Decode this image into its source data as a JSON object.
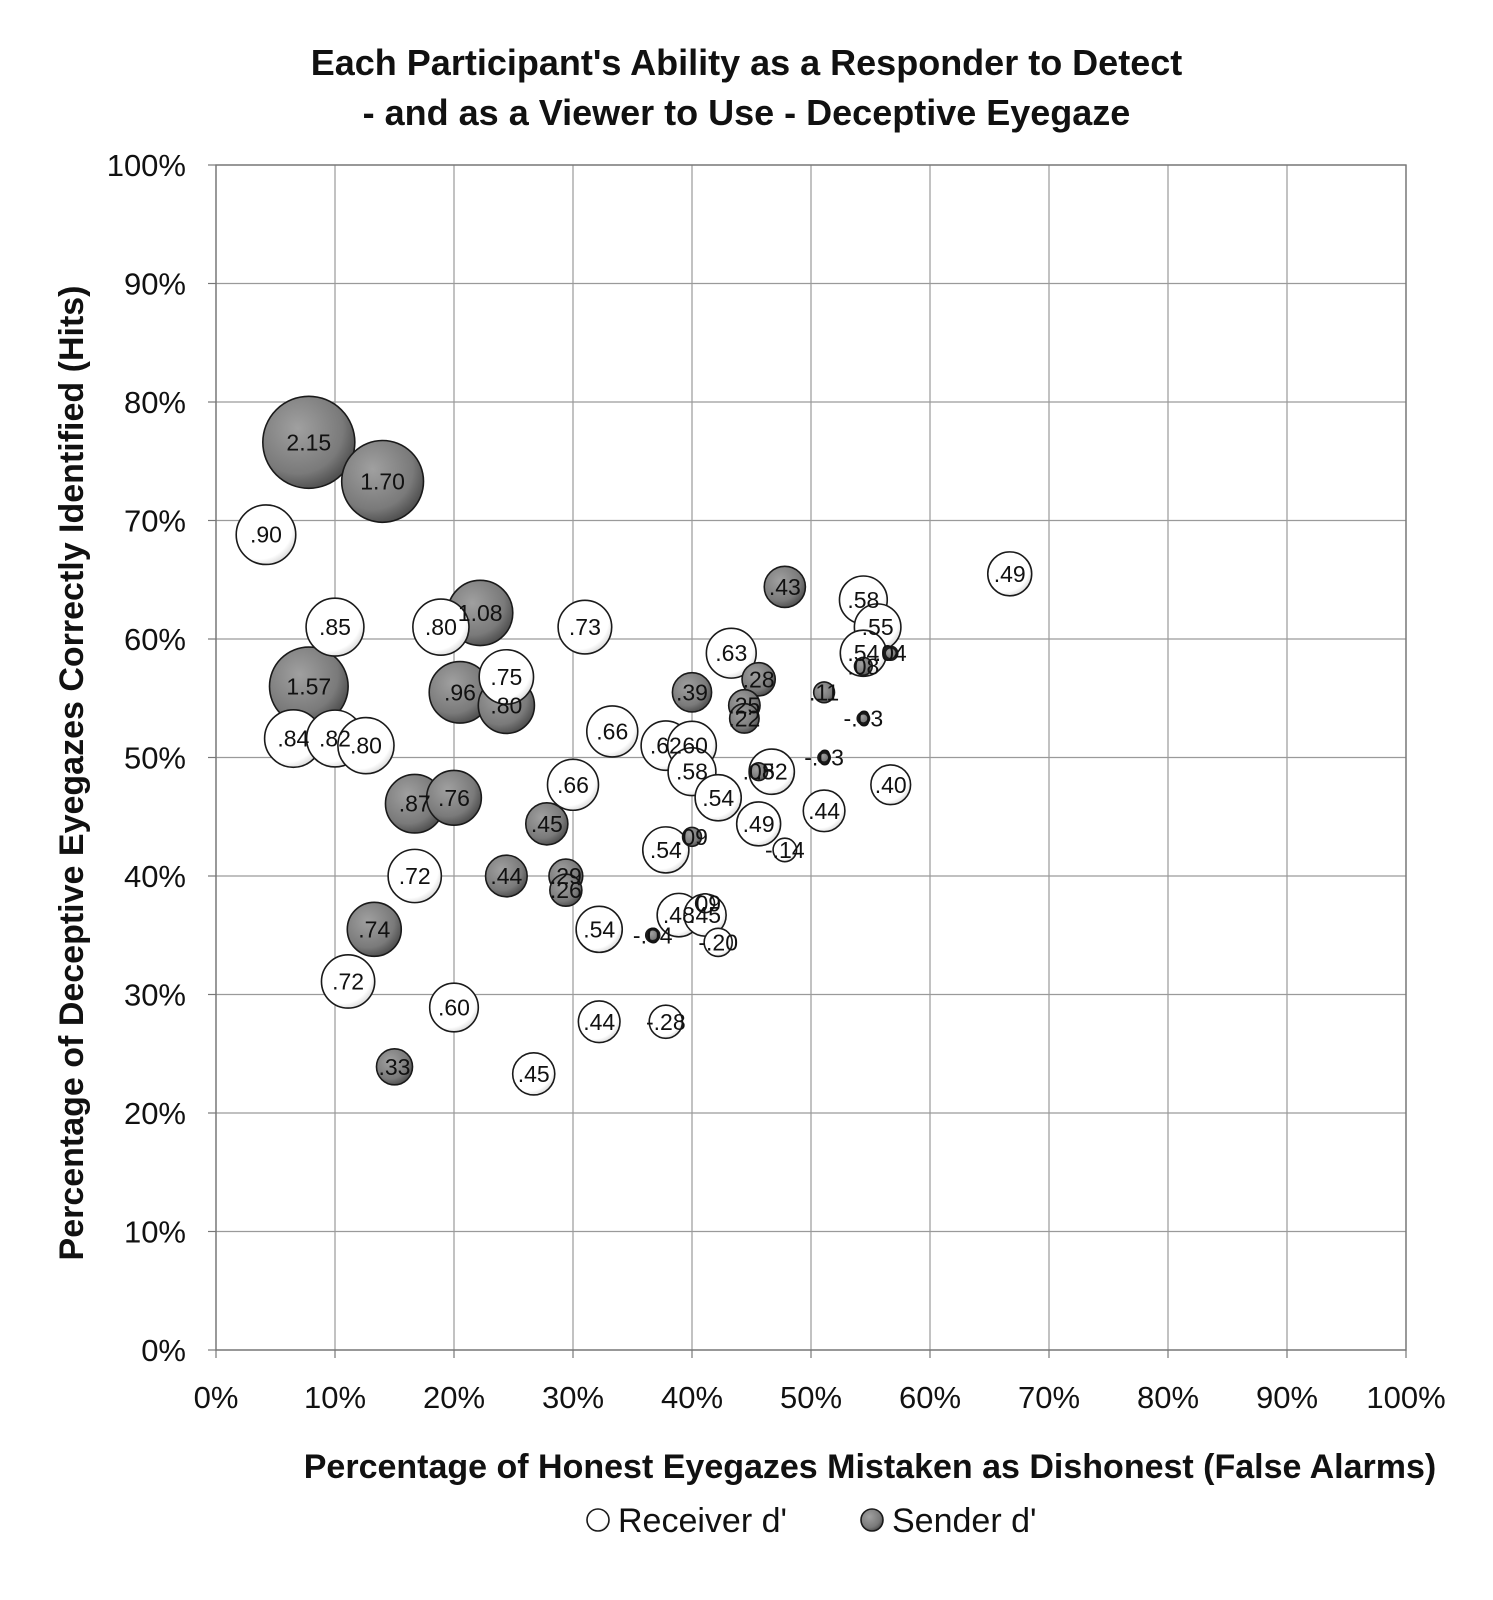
{
  "chart_data": {
    "type": "scatter",
    "title": "Each Participant's Ability as a Responder to Detect",
    "subtitle": "- and as a Viewer to Use - Deceptive Eyegaze",
    "xlabel": "Percentage of Honest Eyegazes Mistaken as Dishonest (False Alarms)",
    "ylabel": "Percentage of Deceptive Eyegazes Correctly Identified (Hits)",
    "xlim": [
      0,
      100
    ],
    "ylim": [
      0,
      100
    ],
    "x_ticks": [
      "0%",
      "10%",
      "20%",
      "30%",
      "40%",
      "50%",
      "60%",
      "70%",
      "80%",
      "90%",
      "100%"
    ],
    "y_ticks": [
      "0%",
      "10%",
      "20%",
      "30%",
      "40%",
      "50%",
      "60%",
      "70%",
      "80%",
      "90%",
      "100%"
    ],
    "grid": true,
    "legend_position": "bottom",
    "encoding": "bubble size = d'",
    "series": [
      {
        "name": "Receiver d'",
        "color": "#ffffff",
        "points": [
          {
            "x": 4.2,
            "y": 68.8,
            "size": 0.9,
            "label": ".90"
          },
          {
            "x": 10.0,
            "y": 61.0,
            "size": 0.85,
            "label": ".85"
          },
          {
            "x": 18.9,
            "y": 61.0,
            "size": 0.8,
            "label": ".80"
          },
          {
            "x": 31.0,
            "y": 61.0,
            "size": 0.73,
            "label": ".73"
          },
          {
            "x": 24.4,
            "y": 56.8,
            "size": 0.75,
            "label": ".75"
          },
          {
            "x": 6.5,
            "y": 51.6,
            "size": 0.84,
            "label": ".84"
          },
          {
            "x": 10.0,
            "y": 51.6,
            "size": 0.82,
            "label": ".82"
          },
          {
            "x": 12.6,
            "y": 51.0,
            "size": 0.8,
            "label": ".80"
          },
          {
            "x": 33.3,
            "y": 52.2,
            "size": 0.66,
            "label": ".66"
          },
          {
            "x": 37.8,
            "y": 51.0,
            "size": 0.62,
            "label": ".62"
          },
          {
            "x": 40.0,
            "y": 51.0,
            "size": 0.6,
            "label": ".60"
          },
          {
            "x": 40.0,
            "y": 48.8,
            "size": 0.58,
            "label": ".58"
          },
          {
            "x": 30.0,
            "y": 47.7,
            "size": 0.66,
            "label": ".66"
          },
          {
            "x": 42.2,
            "y": 46.6,
            "size": 0.54,
            "label": ".54"
          },
          {
            "x": 43.3,
            "y": 58.8,
            "size": 0.63,
            "label": ".63"
          },
          {
            "x": 46.7,
            "y": 48.8,
            "size": 0.52,
            "label": ".52"
          },
          {
            "x": 45.6,
            "y": 44.4,
            "size": 0.49,
            "label": ".49"
          },
          {
            "x": 51.1,
            "y": 45.5,
            "size": 0.44,
            "label": ".44"
          },
          {
            "x": 37.8,
            "y": 42.2,
            "size": 0.54,
            "label": ".54"
          },
          {
            "x": 54.4,
            "y": 63.3,
            "size": 0.58,
            "label": ".58"
          },
          {
            "x": 55.6,
            "y": 61.0,
            "size": 0.55,
            "label": ".55"
          },
          {
            "x": 54.4,
            "y": 58.8,
            "size": 0.54,
            "label": ".54"
          },
          {
            "x": 56.7,
            "y": 47.7,
            "size": 0.4,
            "label": ".40"
          },
          {
            "x": 66.7,
            "y": 65.5,
            "size": 0.49,
            "label": ".49"
          },
          {
            "x": 16.7,
            "y": 40.0,
            "size": 0.72,
            "label": ".72"
          },
          {
            "x": 11.1,
            "y": 31.1,
            "size": 0.72,
            "label": ".72"
          },
          {
            "x": 20.0,
            "y": 28.9,
            "size": 0.6,
            "label": ".60"
          },
          {
            "x": 32.2,
            "y": 35.5,
            "size": 0.54,
            "label": ".54"
          },
          {
            "x": 38.9,
            "y": 36.7,
            "size": 0.48,
            "label": ".48"
          },
          {
            "x": 41.1,
            "y": 36.7,
            "size": 0.45,
            "label": ".45"
          },
          {
            "x": 32.2,
            "y": 27.7,
            "size": 0.44,
            "label": ".44"
          },
          {
            "x": 26.7,
            "y": 23.3,
            "size": 0.45,
            "label": ".45"
          },
          {
            "x": 47.8,
            "y": 42.2,
            "size": 0.14,
            "label": "-.14"
          },
          {
            "x": 41.1,
            "y": 37.7,
            "size": 0.09,
            "label": ".09"
          },
          {
            "x": 42.2,
            "y": 34.4,
            "size": 0.2,
            "label": "-.20"
          },
          {
            "x": 37.8,
            "y": 27.7,
            "size": 0.28,
            "label": "-.28"
          }
        ]
      },
      {
        "name": "Sender d'",
        "color": "#7a7a7a",
        "points": [
          {
            "x": 7.8,
            "y": 76.6,
            "size": 2.15,
            "label": "2.15"
          },
          {
            "x": 14.0,
            "y": 73.3,
            "size": 1.7,
            "label": "1.70"
          },
          {
            "x": 22.2,
            "y": 62.2,
            "size": 1.08,
            "label": "1.08"
          },
          {
            "x": 7.8,
            "y": 56.0,
            "size": 1.57,
            "label": "1.57"
          },
          {
            "x": 20.5,
            "y": 55.5,
            "size": 0.96,
            "label": ".96"
          },
          {
            "x": 24.4,
            "y": 54.4,
            "size": 0.8,
            "label": ".80"
          },
          {
            "x": 16.7,
            "y": 46.1,
            "size": 0.87,
            "label": ".87"
          },
          {
            "x": 20.0,
            "y": 46.6,
            "size": 0.76,
            "label": ".76"
          },
          {
            "x": 27.8,
            "y": 44.4,
            "size": 0.45,
            "label": ".45"
          },
          {
            "x": 24.4,
            "y": 40.0,
            "size": 0.44,
            "label": ".44"
          },
          {
            "x": 29.4,
            "y": 40.0,
            "size": 0.29,
            "label": ".29"
          },
          {
            "x": 29.4,
            "y": 38.8,
            "size": 0.26,
            "label": ".26"
          },
          {
            "x": 13.3,
            "y": 35.5,
            "size": 0.74,
            "label": ".74"
          },
          {
            "x": 15.0,
            "y": 23.9,
            "size": 0.33,
            "label": ".33"
          },
          {
            "x": 40.0,
            "y": 55.5,
            "size": 0.39,
            "label": ".39"
          },
          {
            "x": 47.8,
            "y": 64.4,
            "size": 0.43,
            "label": ".43"
          },
          {
            "x": 45.6,
            "y": 56.6,
            "size": 0.28,
            "label": ".28"
          },
          {
            "x": 44.4,
            "y": 54.4,
            "size": 0.25,
            "label": ".25"
          },
          {
            "x": 44.4,
            "y": 53.3,
            "size": 0.22,
            "label": ".22"
          },
          {
            "x": 51.1,
            "y": 55.5,
            "size": 0.11,
            "label": ".11"
          },
          {
            "x": 54.4,
            "y": 53.3,
            "size": 0.03,
            "label": "-.03"
          },
          {
            "x": 51.1,
            "y": 50.0,
            "size": 0.03,
            "label": "-.03"
          },
          {
            "x": 54.4,
            "y": 57.7,
            "size": 0.08,
            "label": ".08"
          },
          {
            "x": 56.7,
            "y": 58.8,
            "size": 0.04,
            "label": ".04"
          },
          {
            "x": 45.6,
            "y": 48.8,
            "size": 0.08,
            "label": ".08"
          },
          {
            "x": 40.0,
            "y": 43.3,
            "size": 0.09,
            "label": ".09"
          },
          {
            "x": 36.7,
            "y": 35.0,
            "size": 0.04,
            "label": "-.04"
          }
        ]
      }
    ]
  }
}
